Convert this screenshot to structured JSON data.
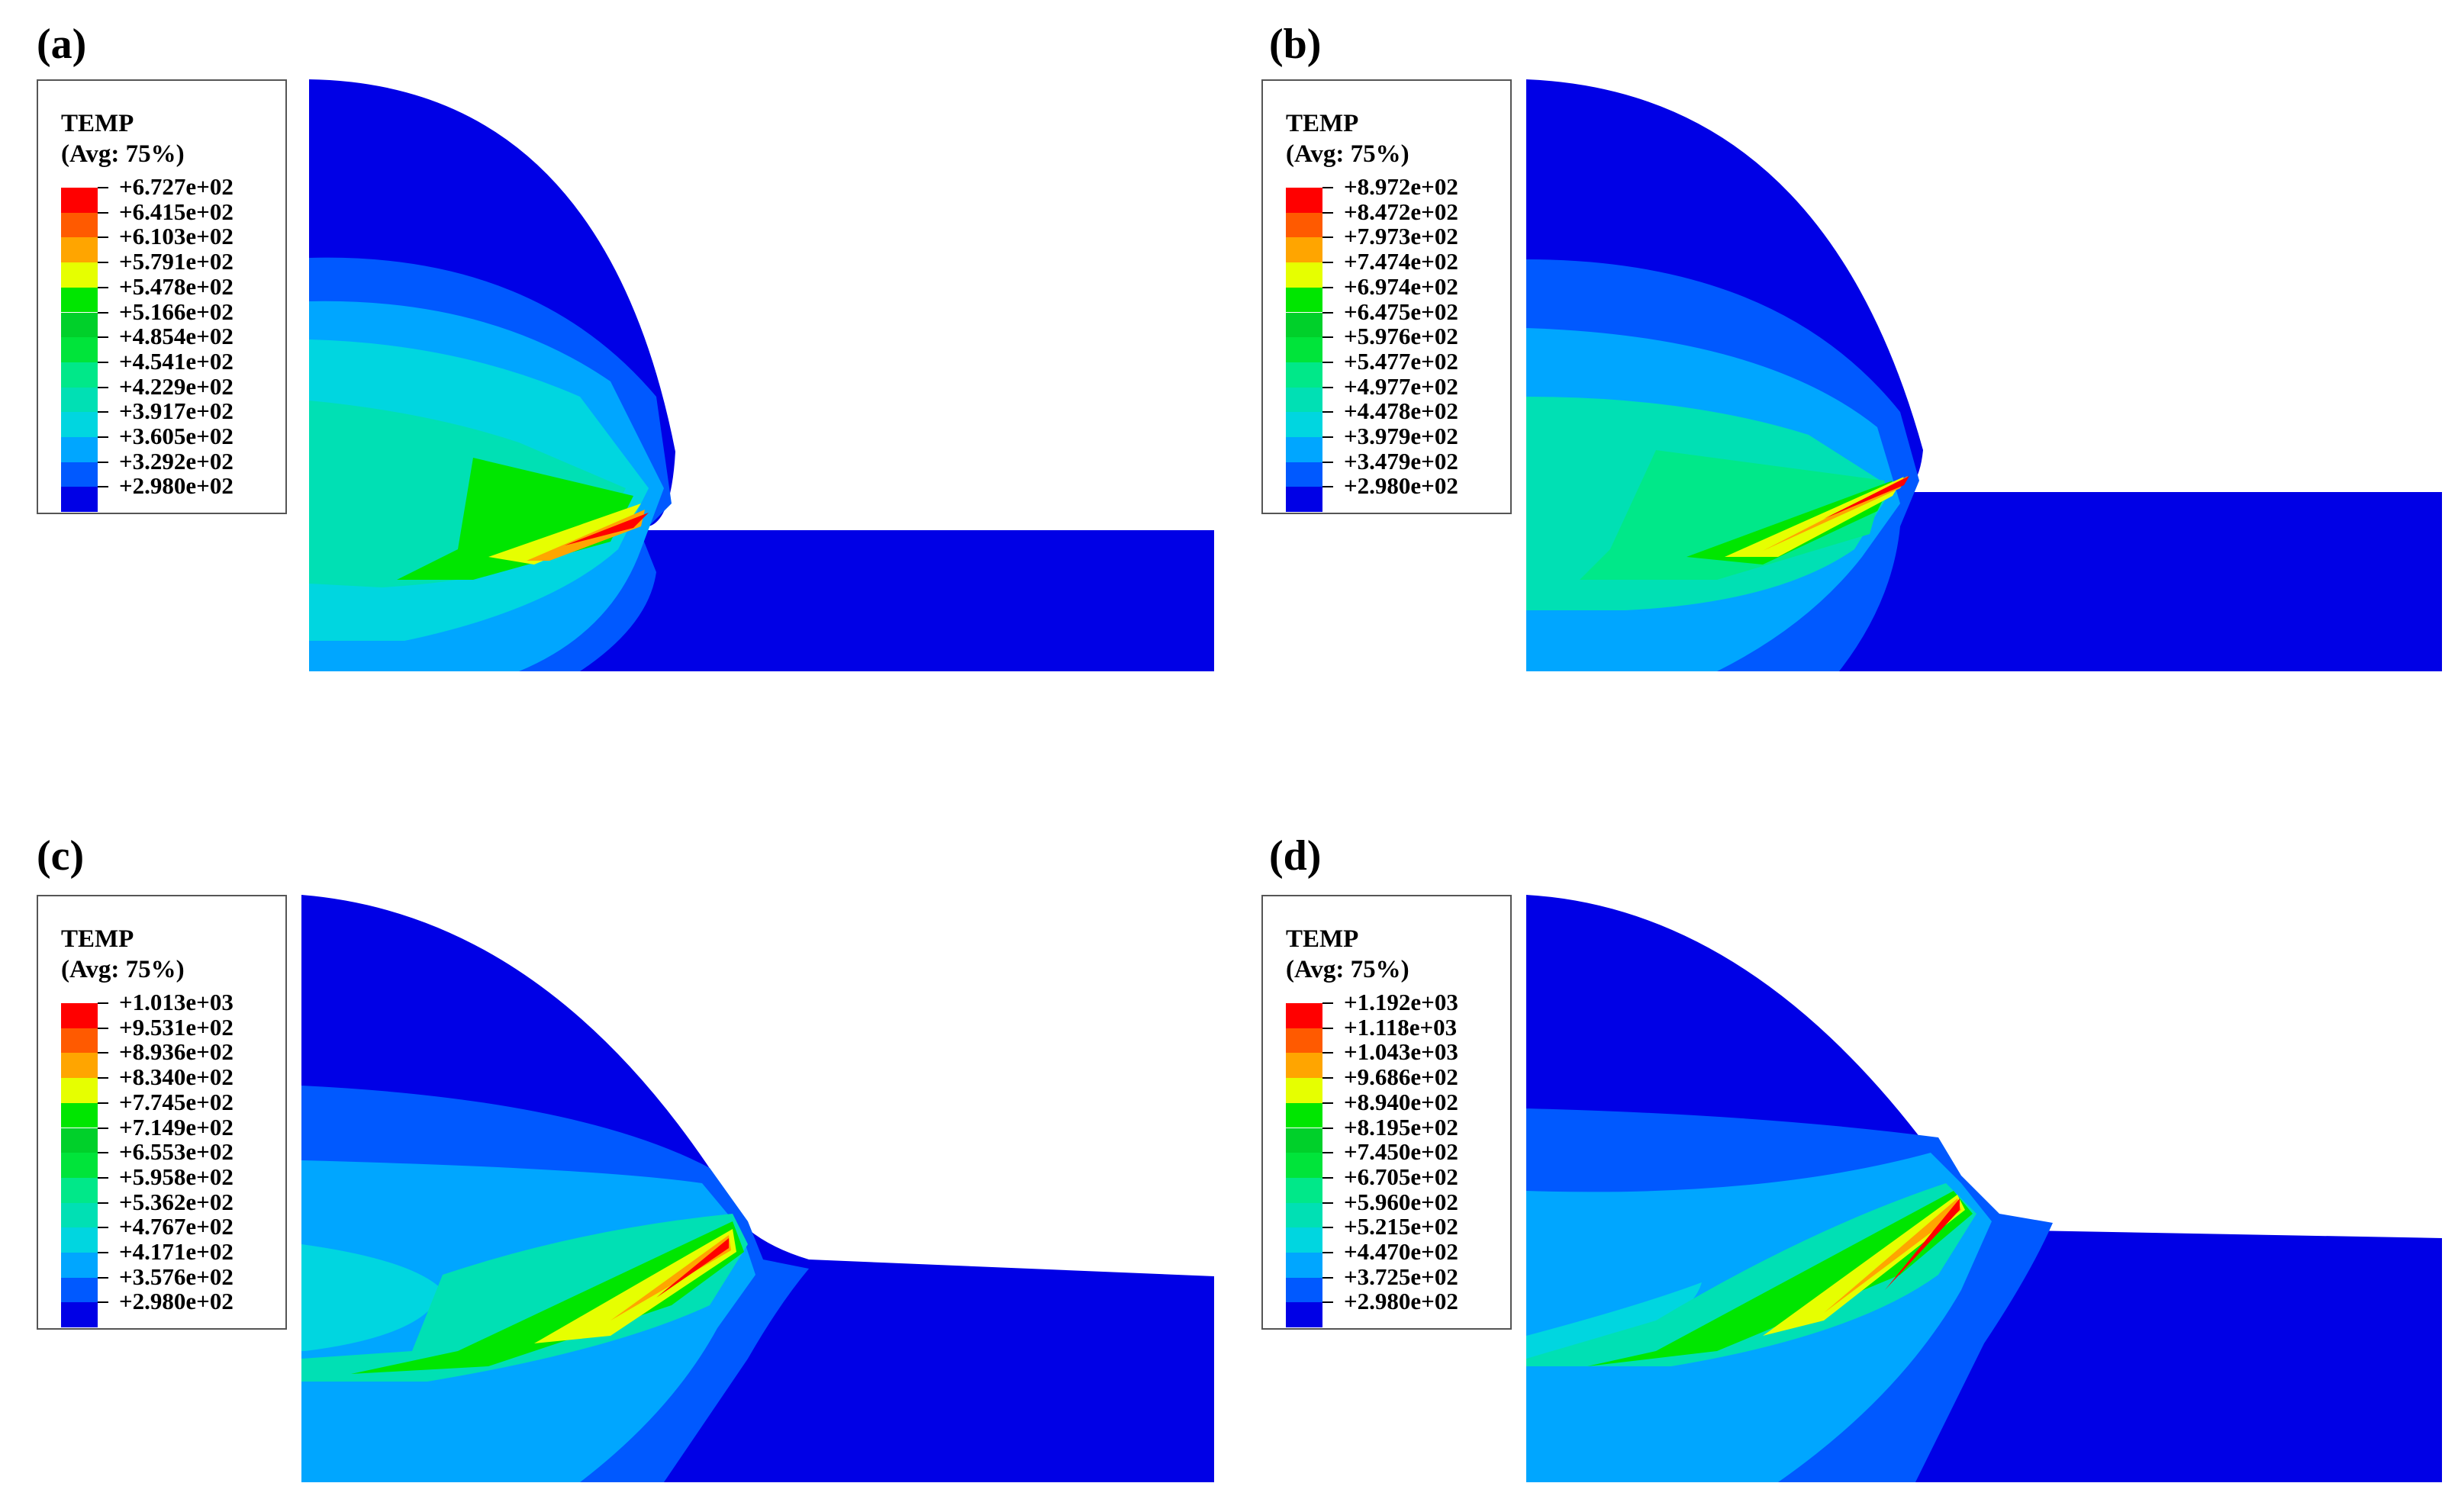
{
  "panels": [
    {
      "label": "(a)",
      "legend": {
        "title": "TEMP",
        "subtitle": "(Avg: 75%)",
        "values": [
          "+6.727e+02",
          "+6.415e+02",
          "+6.103e+02",
          "+5.791e+02",
          "+5.478e+02",
          "+5.166e+02",
          "+4.854e+02",
          "+4.541e+02",
          "+4.229e+02",
          "+3.917e+02",
          "+3.605e+02",
          "+3.292e+02",
          "+2.980e+02"
        ]
      }
    },
    {
      "label": "(b)",
      "legend": {
        "title": "TEMP",
        "subtitle": "(Avg: 75%)",
        "values": [
          "+8.972e+02",
          "+8.472e+02",
          "+7.973e+02",
          "+7.474e+02",
          "+6.974e+02",
          "+6.475e+02",
          "+5.976e+02",
          "+5.477e+02",
          "+4.977e+02",
          "+4.478e+02",
          "+3.979e+02",
          "+3.479e+02",
          "+2.980e+02"
        ]
      }
    },
    {
      "label": "(c)",
      "legend": {
        "title": "TEMP",
        "subtitle": "(Avg: 75%)",
        "values": [
          "+1.013e+03",
          "+9.531e+02",
          "+8.936e+02",
          "+8.340e+02",
          "+7.745e+02",
          "+7.149e+02",
          "+6.553e+02",
          "+5.958e+02",
          "+5.362e+02",
          "+4.767e+02",
          "+4.171e+02",
          "+3.576e+02",
          "+2.980e+02"
        ]
      }
    },
    {
      "label": "(d)",
      "legend": {
        "title": "TEMP",
        "subtitle": "(Avg: 75%)",
        "values": [
          "+1.192e+03",
          "+1.118e+03",
          "+1.043e+03",
          "+9.686e+02",
          "+8.940e+02",
          "+8.195e+02",
          "+7.450e+02",
          "+6.705e+02",
          "+5.960e+02",
          "+5.215e+02",
          "+4.470e+02",
          "+3.725e+02",
          "+2.980e+02"
        ]
      }
    }
  ],
  "colormap": [
    "#ff0000",
    "#ff5a00",
    "#ffa500",
    "#e6ff00",
    "#00e600",
    "#00d02a",
    "#00e43a",
    "#00e889",
    "#00e0b4",
    "#00d6e0",
    "#00a6ff",
    "#0059ff",
    "#0000e6"
  ]
}
